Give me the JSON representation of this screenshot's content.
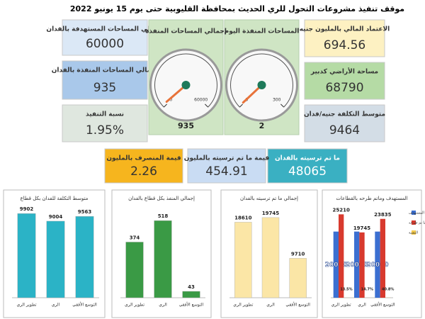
{
  "title": "موقف تنفيذ مشروعات التحول للري الحديث بمحافظة القليوبية حتى يوم 15 يونيو 2022",
  "cards": [
    {
      "label": "الاعتماد المالي بالمليون جنيه",
      "value": 694.56
    },
    {
      "label": "مساحة الأراضي كدبير",
      "value": 68790
    },
    {
      "label": "متوسط التكلفة جنيه/فدان",
      "value": 9464
    },
    {
      "label": "إجمالي المساحات المستهدفة بالفدان",
      "value": 60000
    },
    {
      "label": "إجمالي المساحات المنفذة بالفدان",
      "value": 935
    },
    {
      "label": "نسبة التنفيذ",
      "value": "1.95%"
    },
    {
      "label": "ما تم ترسيته بالفدان",
      "value": 48065
    },
    {
      "label": "قيمة ما تم ترسيته بالمليون",
      "value": 454.91
    },
    {
      "label": "قيمة المنصرف بالمليون",
      "value": 2.26
    }
  ],
  "chart_data": [
    {
      "type": "gauge",
      "title": "المساحات المنفذة اليوم",
      "value": 2,
      "ylim": [
        0,
        300
      ],
      "yticks": [
        0,
        300
      ],
      "color": "#e8733a"
    },
    {
      "type": "gauge",
      "title": "إجمالي المساحات المنفذة",
      "value": 935,
      "ylim": [
        0,
        60000
      ],
      "yticks": [
        0,
        60000
      ],
      "color": "#e8733a"
    },
    {
      "type": "bar",
      "title": "متوسط التكلفة للفدان بكل قطاع",
      "categories": [
        "تطوير الري",
        "الري",
        "التوسع الأفقي"
      ],
      "values": [
        9902,
        9004,
        9563
      ],
      "color": "#2bb3c6",
      "ylim": [
        0,
        10500
      ]
    },
    {
      "type": "bar",
      "title": "إجمالي المنفذ بكل قطاع بالفدان",
      "categories": [
        "تطوير الري",
        "الري",
        "التوسع الأفقي"
      ],
      "values": [
        374,
        518,
        43
      ],
      "color": "#3a9a45",
      "ylim": [
        0,
        600
      ]
    },
    {
      "type": "bar",
      "title": "إجمالي ما تم ترسيته بالفدان",
      "categories": [
        "تطوير الري",
        "الري",
        "التوسع الأفقي"
      ],
      "values": [
        18610,
        19745,
        9710
      ],
      "color": "#fbe6a6",
      "ylim": [
        0,
        22000
      ]
    },
    {
      "type": "bar",
      "title": "المستهدف وماتم طرحه بالقطاعات",
      "categories": [
        "تطوير الري",
        "الري",
        "التوسع الأفقي"
      ],
      "series": [
        {
          "name": "المستهدف",
          "color": "#3b6fd1",
          "values": [
            20000,
            20000,
            20000
          ]
        },
        {
          "name": "ما تم طرحه",
          "color": "#d83a2e",
          "values": [
            25210,
            19745,
            23835
          ]
        },
        {
          "name": "النسبة",
          "color": "#f2c94c",
          "values": [
            13.5,
            14.7,
            40.8
          ],
          "value_labels": [
            "13.5%",
            "14.7%",
            "40.8%"
          ]
        }
      ],
      "ylim": [
        0,
        27000
      ]
    }
  ]
}
